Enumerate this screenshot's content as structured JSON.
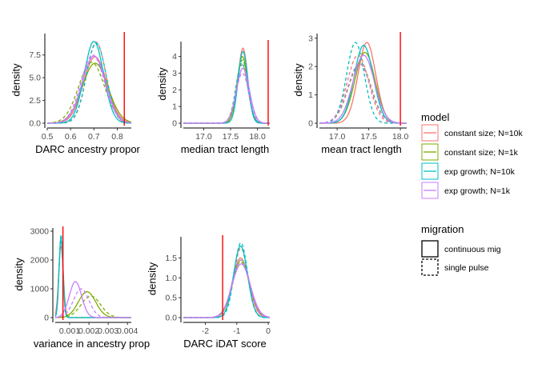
{
  "chart_data": [
    {
      "type": "line",
      "xlabel": "DARC ancestry propor",
      "ylabel": "density",
      "xticks": [
        "0.5",
        "0.6",
        "0.7",
        "0.8"
      ],
      "yticks": [
        "0.0",
        "2.5",
        "5.0",
        "7.5"
      ],
      "xlim": [
        0.5,
        0.86
      ],
      "ylim": [
        0,
        9.5
      ],
      "observed": 0.83,
      "series": [
        {
          "model": "constant size; N=10k",
          "migration": "continuous mig",
          "peak_x": 0.705,
          "peak": 7.3,
          "sd": 0.05
        },
        {
          "model": "constant size; N=10k",
          "migration": "single pulse",
          "peak_x": 0.71,
          "peak": 8.9,
          "sd": 0.041
        },
        {
          "model": "constant size; N=1k",
          "migration": "continuous mig",
          "peak_x": 0.705,
          "peak": 6.6,
          "sd": 0.055
        },
        {
          "model": "constant size; N=1k",
          "migration": "single pulse",
          "peak_x": 0.69,
          "peak": 6.7,
          "sd": 0.055
        },
        {
          "model": "exp growth; N=10k",
          "migration": "continuous mig",
          "peak_x": 0.7,
          "peak": 9.0,
          "sd": 0.041
        },
        {
          "model": "exp growth; N=10k",
          "migration": "single pulse",
          "peak_x": 0.71,
          "peak": 8.8,
          "sd": 0.042
        },
        {
          "model": "exp growth; N=1k",
          "migration": "continuous mig",
          "peak_x": 0.7,
          "peak": 7.4,
          "sd": 0.05
        },
        {
          "model": "exp growth; N=1k",
          "migration": "single pulse",
          "peak_x": 0.695,
          "peak": 7.5,
          "sd": 0.05
        }
      ]
    },
    {
      "type": "line",
      "xlabel": "median tract length",
      "ylabel": "density",
      "xticks": [
        "17.0",
        "17.5",
        "18.0"
      ],
      "yticks": [
        "0",
        "1",
        "2",
        "3",
        "4"
      ],
      "xlim": [
        16.62,
        18.23
      ],
      "ylim": [
        0,
        4.7
      ],
      "observed": 18.2,
      "series": [
        {
          "model": "constant size; N=10k",
          "migration": "continuous mig",
          "peak_x": 17.73,
          "peak": 4.5,
          "sd": 0.09
        },
        {
          "model": "constant size; N=10k",
          "migration": "single pulse",
          "peak_x": 17.71,
          "peak": 3.5,
          "sd": 0.11
        },
        {
          "model": "constant size; N=1k",
          "migration": "continuous mig",
          "peak_x": 17.72,
          "peak": 4.0,
          "sd": 0.1
        },
        {
          "model": "constant size; N=1k",
          "migration": "single pulse",
          "peak_x": 17.72,
          "peak": 3.8,
          "sd": 0.1
        },
        {
          "model": "exp growth; N=10k",
          "migration": "continuous mig",
          "peak_x": 17.73,
          "peak": 4.3,
          "sd": 0.09
        },
        {
          "model": "exp growth; N=10k",
          "migration": "single pulse",
          "peak_x": 17.71,
          "peak": 3.6,
          "sd": 0.11
        },
        {
          "model": "exp growth; N=1k",
          "migration": "continuous mig",
          "peak_x": 17.73,
          "peak": 3.3,
          "sd": 0.12
        },
        {
          "model": "exp growth; N=1k",
          "migration": "single pulse",
          "peak_x": 17.72,
          "peak": 3.0,
          "sd": 0.12
        }
      ]
    },
    {
      "type": "line",
      "xlabel": "mean tract length",
      "ylabel": "density",
      "xticks": [
        "17.0",
        "17.5",
        "18.0"
      ],
      "yticks": [
        "0",
        "1",
        "2",
        "3"
      ],
      "xlim": [
        16.72,
        18.1
      ],
      "ylim": [
        0,
        3.05
      ],
      "observed": 18.0,
      "series": [
        {
          "model": "constant size; N=10k",
          "migration": "continuous mig",
          "peak_x": 17.47,
          "peak": 2.85,
          "sd": 0.14
        },
        {
          "model": "constant size; N=10k",
          "migration": "single pulse",
          "peak_x": 17.33,
          "peak": 2.4,
          "sd": 0.17
        },
        {
          "model": "constant size; N=1k",
          "migration": "continuous mig",
          "peak_x": 17.44,
          "peak": 2.5,
          "sd": 0.16
        },
        {
          "model": "constant size; N=1k",
          "migration": "single pulse",
          "peak_x": 17.36,
          "peak": 2.1,
          "sd": 0.18
        },
        {
          "model": "exp growth; N=10k",
          "migration": "continuous mig",
          "peak_x": 17.42,
          "peak": 2.75,
          "sd": 0.15
        },
        {
          "model": "exp growth; N=10k",
          "migration": "single pulse",
          "peak_x": 17.29,
          "peak": 2.85,
          "sd": 0.14
        },
        {
          "model": "exp growth; N=1k",
          "migration": "continuous mig",
          "peak_x": 17.42,
          "peak": 2.4,
          "sd": 0.17
        },
        {
          "model": "exp growth; N=1k",
          "migration": "single pulse",
          "peak_x": 17.35,
          "peak": 2.1,
          "sd": 0.18
        }
      ]
    },
    {
      "type": "line",
      "xlabel": "variance in ancestry prop",
      "ylabel": "density",
      "xticks": [
        "0.001",
        "0.002",
        "0.003",
        "0.004"
      ],
      "yticks": [
        "0",
        "1000",
        "2000",
        "3000"
      ],
      "xlim": [
        0.00025,
        0.0042
      ],
      "ylim": [
        0,
        3000
      ],
      "observed": 0.00065,
      "series": [
        {
          "model": "constant size; N=10k",
          "migration": "continuous mig",
          "peak_x": 0.00055,
          "peak": 2500,
          "sd": 0.00012
        },
        {
          "model": "constant size; N=10k",
          "migration": "single pulse",
          "peak_x": 0.00055,
          "peak": 2700,
          "sd": 0.00011
        },
        {
          "model": "constant size; N=1k",
          "migration": "continuous mig",
          "peak_x": 0.0019,
          "peak": 900,
          "sd": 0.00045
        },
        {
          "model": "constant size; N=1k",
          "migration": "single pulse",
          "peak_x": 0.0021,
          "peak": 750,
          "sd": 0.0005
        },
        {
          "model": "exp growth; N=10k",
          "migration": "continuous mig",
          "peak_x": 0.00055,
          "peak": 2800,
          "sd": 0.0001
        },
        {
          "model": "exp growth; N=10k",
          "migration": "single pulse",
          "peak_x": 0.00055,
          "peak": 2900,
          "sd": 0.0001
        },
        {
          "model": "exp growth; N=1k",
          "migration": "continuous mig",
          "peak_x": 0.0013,
          "peak": 1250,
          "sd": 0.00032
        },
        {
          "model": "exp growth; N=1k",
          "migration": "single pulse",
          "peak_x": 0.0016,
          "peak": 1000,
          "sd": 0.0004
        }
      ]
    },
    {
      "type": "line",
      "xlabel": "DARC iDAT score",
      "ylabel": "density",
      "xticks": [
        "-2",
        "-1",
        "0"
      ],
      "yticks": [
        "0.0",
        "0.5",
        "1.0",
        "1.5"
      ],
      "xlim": [
        -2.7,
        0.05
      ],
      "ylim": [
        0,
        1.95
      ],
      "observed": -1.45,
      "series": [
        {
          "model": "constant size; N=10k",
          "migration": "continuous mig",
          "peak_x": -0.88,
          "peak": 1.5,
          "sd": 0.26
        },
        {
          "model": "constant size; N=10k",
          "migration": "single pulse",
          "peak_x": -0.87,
          "peak": 1.75,
          "sd": 0.22
        },
        {
          "model": "constant size; N=1k",
          "migration": "continuous mig",
          "peak_x": -0.86,
          "peak": 1.45,
          "sd": 0.27
        },
        {
          "model": "constant size; N=1k",
          "migration": "single pulse",
          "peak_x": -0.87,
          "peak": 1.4,
          "sd": 0.28
        },
        {
          "model": "exp growth; N=10k",
          "migration": "continuous mig",
          "peak_x": -0.88,
          "peak": 1.8,
          "sd": 0.22
        },
        {
          "model": "exp growth; N=10k",
          "migration": "single pulse",
          "peak_x": -0.87,
          "peak": 1.88,
          "sd": 0.21
        },
        {
          "model": "exp growth; N=1k",
          "migration": "continuous mig",
          "peak_x": -0.86,
          "peak": 1.35,
          "sd": 0.29
        },
        {
          "model": "exp growth; N=1k",
          "migration": "single pulse",
          "peak_x": -0.87,
          "peak": 1.45,
          "sd": 0.27
        }
      ]
    }
  ],
  "colors": {
    "constant size; N=10k": "#F8766D",
    "constant size; N=1k": "#7CAE00",
    "exp growth; N=10k": "#00BFC4",
    "exp growth; N=1k": "#C77CFF",
    "observed_line": "#FF0000"
  },
  "legend": {
    "model_title": "model",
    "model_items": [
      "constant size; N=10k",
      "constant size; N=1k",
      "exp growth; N=10k",
      "exp growth; N=1k"
    ],
    "migration_title": "migration",
    "migration_items": [
      "continuous mig",
      "single pulse"
    ]
  }
}
